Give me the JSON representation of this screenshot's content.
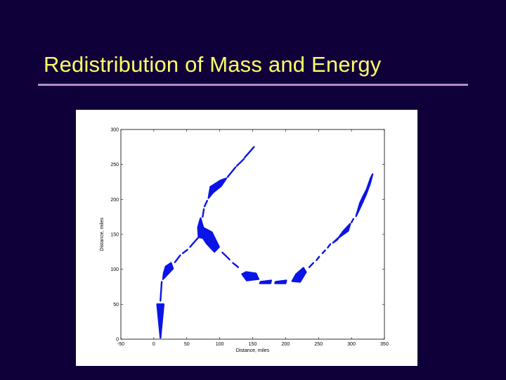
{
  "slide": {
    "title": "Redistribution of Mass and Energy",
    "background_color": "#10003a",
    "title_color": "#ffff66",
    "rule_color": "#b58ad6"
  },
  "chart_data": {
    "type": "line",
    "title": "",
    "xlabel": "Distance, miles",
    "ylabel": "Distance, miles",
    "xlim": [
      -50,
      350
    ],
    "ylim": [
      0,
      300
    ],
    "xticks": [
      -50,
      0,
      50,
      100,
      150,
      200,
      250,
      300,
      350
    ],
    "yticks": [
      0,
      50,
      100,
      150,
      200,
      250,
      300
    ],
    "grid": false,
    "legend": "none",
    "color": "#0a14e6",
    "series": [
      {
        "segments": [
          [
            [
              5,
              50
            ],
            [
              10,
              2
            ],
            [
              15,
              50
            ]
          ],
          [
            [
              10,
              55
            ],
            [
              12,
              82
            ]
          ],
          [
            [
              14,
              86
            ],
            [
              15,
              94
            ],
            [
              18,
              104
            ],
            [
              26,
              109
            ],
            [
              29,
              101
            ],
            [
              18,
              90
            ]
          ],
          [
            [
              32,
              110
            ],
            [
              40,
              120
            ]
          ],
          [
            [
              44,
              123
            ],
            [
              51,
              128
            ]
          ],
          [
            [
              55,
              132
            ],
            [
              67,
              145
            ]
          ],
          [
            [
              68,
              146
            ],
            [
              67,
              160
            ],
            [
              71,
              173
            ],
            [
              76,
              156
            ],
            [
              73,
              145
            ]
          ],
          [
            [
              74,
              175
            ],
            [
              76,
              186
            ]
          ],
          [
            [
              77,
              190
            ],
            [
              81,
              198
            ]
          ],
          [
            [
              83,
              202
            ],
            [
              86,
              218
            ],
            [
              101,
              227
            ],
            [
              110,
              230
            ],
            [
              102,
              219
            ],
            [
              90,
              210
            ]
          ],
          [
            [
              112,
              232
            ],
            [
              124,
              246
            ]
          ],
          [
            [
              126,
              248
            ],
            [
              137,
              258
            ]
          ],
          [
            [
              138,
              260
            ],
            [
              152,
              275
            ]
          ]
        ]
      },
      {
        "segments": [
          [
            [
              71,
              150
            ],
            [
              74,
              160
            ],
            [
              88,
              153
            ],
            [
              99,
              132
            ],
            [
              92,
              125
            ],
            [
              80,
              137
            ]
          ],
          [
            [
              104,
              124
            ],
            [
              115,
              114
            ]
          ],
          [
            [
              120,
              109
            ],
            [
              128,
              103
            ]
          ],
          [
            [
              134,
              93
            ],
            [
              140,
              96
            ],
            [
              155,
              94
            ],
            [
              159,
              86
            ],
            [
              141,
              84
            ]
          ],
          [
            [
              162,
              82
            ],
            [
              178,
              84
            ],
            [
              177,
              80
            ],
            [
              161,
              80
            ]
          ],
          [
            [
              185,
              82
            ],
            [
              201,
              84
            ],
            [
              200,
              80
            ],
            [
              184,
              80
            ]
          ],
          [
            [
              210,
              83
            ],
            [
              216,
              93
            ],
            [
              227,
              102
            ],
            [
              231,
              96
            ],
            [
              222,
              82
            ]
          ],
          [
            [
              236,
              103
            ],
            [
              242,
              109
            ]
          ],
          [
            [
              247,
              113
            ],
            [
              251,
              118
            ]
          ],
          [
            [
              256,
              123
            ],
            [
              260,
              127
            ]
          ],
          [
            [
              264,
              131
            ],
            [
              268,
              136
            ]
          ],
          [
            [
              272,
              138
            ],
            [
              280,
              145
            ],
            [
              295,
              155
            ],
            [
              298,
              165
            ],
            [
              288,
              155
            ],
            [
              278,
              142
            ]
          ],
          [
            [
              300,
              167
            ],
            [
              303,
              172
            ]
          ],
          [
            [
              307,
              176
            ],
            [
              313,
              195
            ],
            [
              318,
              205
            ],
            [
              323,
              214
            ],
            [
              329,
              230
            ],
            [
              332,
              236
            ],
            [
              328,
              222
            ],
            [
              322,
              207
            ],
            [
              316,
              194
            ]
          ]
        ]
      }
    ]
  }
}
